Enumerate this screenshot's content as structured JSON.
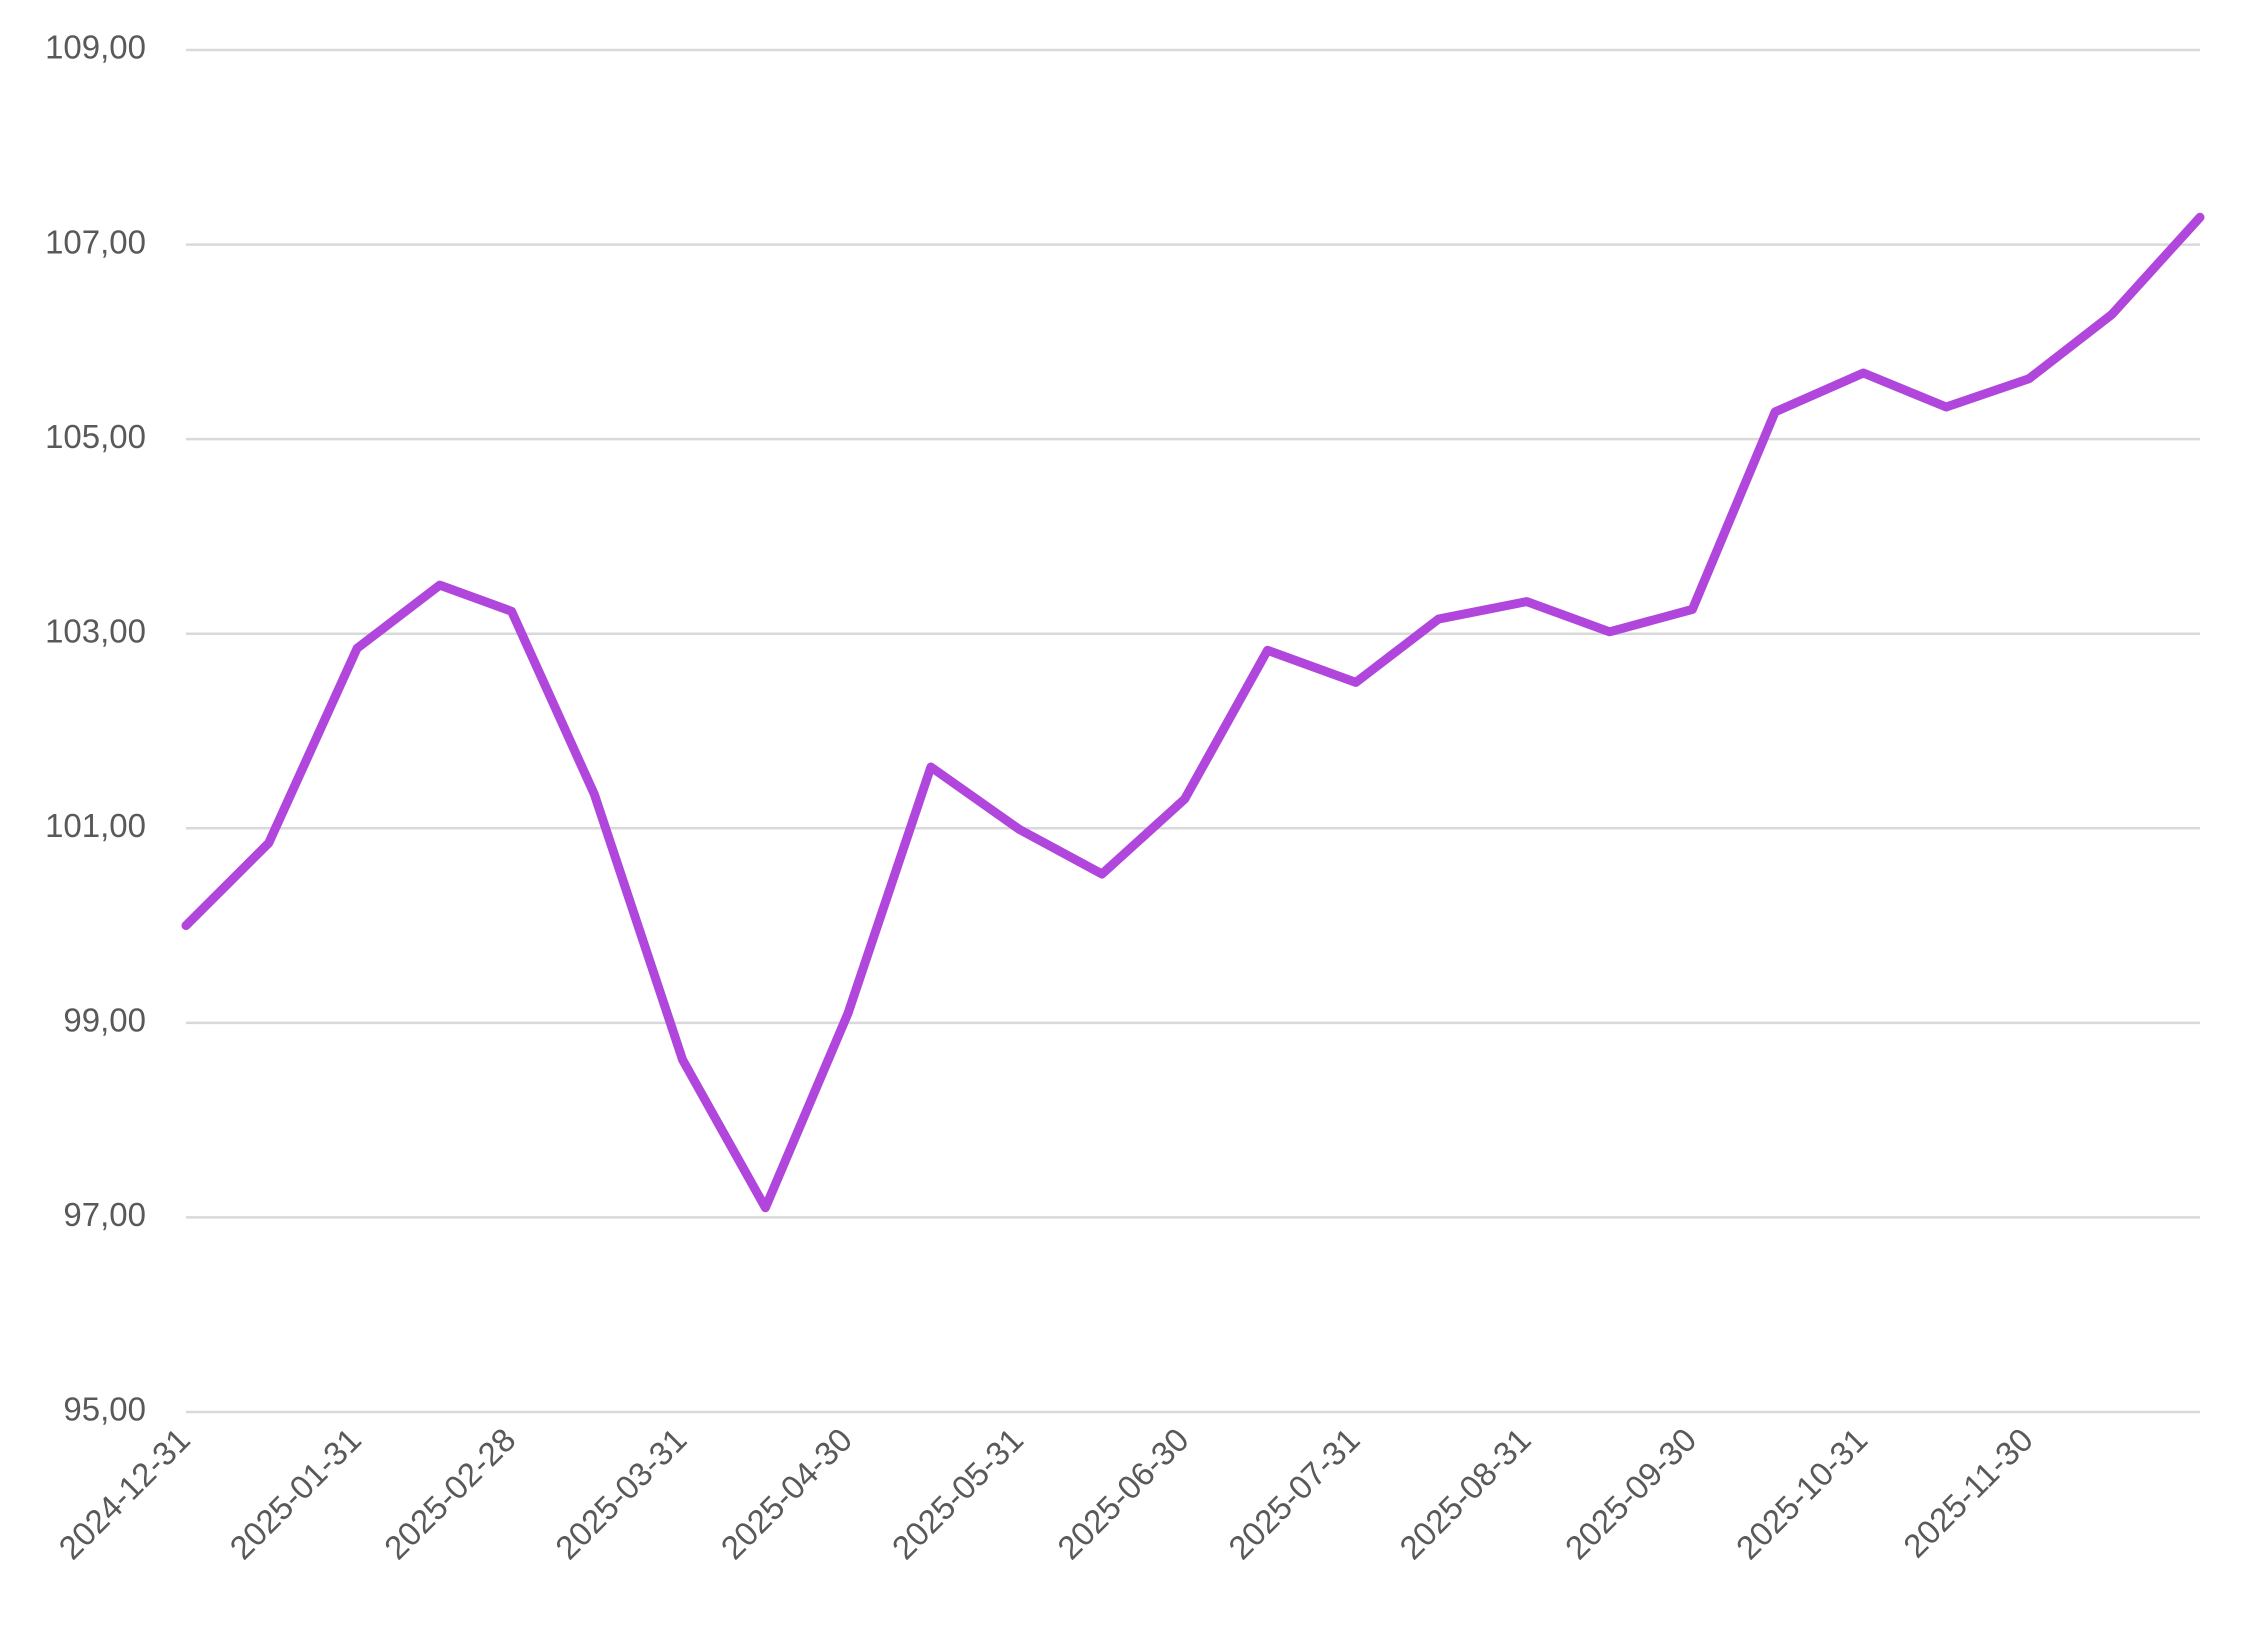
{
  "chart_data": {
    "type": "line",
    "title": "",
    "xlabel": "",
    "ylabel": "",
    "grid": true,
    "legend": "none",
    "ylim": [
      95,
      109
    ],
    "yticks": [
      "95,00",
      "97,00",
      "99,00",
      "101,00",
      "103,00",
      "105,00",
      "107,00",
      "109,00"
    ],
    "ytick_values": [
      95,
      97,
      99,
      101,
      103,
      105,
      107,
      109
    ],
    "xticks": [
      "2024-12-31",
      "2025-01-31",
      "2025-02-28",
      "2025-03-31",
      "2025-04-30",
      "2025-05-31",
      "2025-06-30",
      "2025-07-31",
      "2025-08-31",
      "2025-09-30",
      "2025-10-31",
      "2025-11-30"
    ],
    "x": [
      "2024-12-31",
      "2025-01-15",
      "2025-01-31",
      "2025-02-15",
      "2025-02-28",
      "2025-03-15",
      "2025-03-31",
      "2025-04-15",
      "2025-04-30",
      "2025-05-15",
      "2025-05-31",
      "2025-06-15",
      "2025-06-30",
      "2025-07-15",
      "2025-07-31",
      "2025-08-15",
      "2025-08-31",
      "2025-09-15",
      "2025-09-30",
      "2025-10-15",
      "2025-10-31",
      "2025-11-15",
      "2025-11-30",
      "2025-12-15",
      "2025-12-31"
    ],
    "series": [
      {
        "name": "",
        "color": "#b146dc",
        "values": [
          100.0,
          100.85,
          102.85,
          103.5,
          103.23,
          101.35,
          98.62,
          97.1,
          99.1,
          101.63,
          100.99,
          100.53,
          101.3,
          102.83,
          102.5,
          103.15,
          103.33,
          103.02,
          103.25,
          105.28,
          105.68,
          105.33,
          105.62,
          106.28,
          107.28
        ]
      }
    ]
  }
}
